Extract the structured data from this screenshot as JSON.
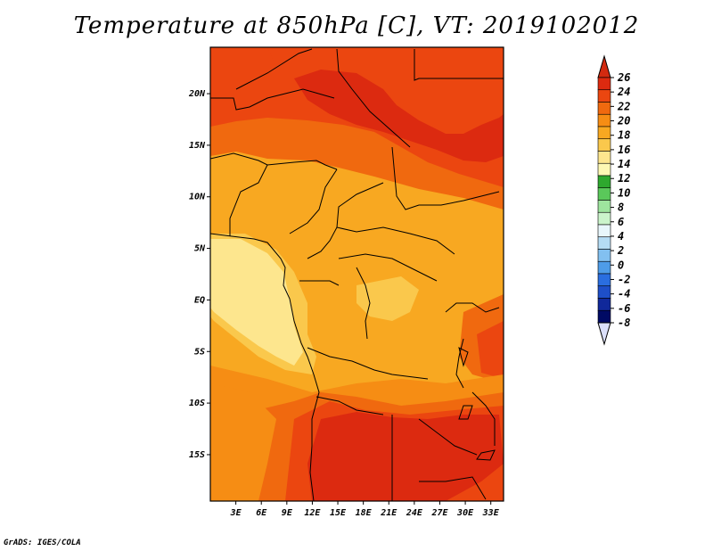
{
  "title": "Temperature at 850hPa [C], VT: 2019102012",
  "footer": "GrADS: IGES/COLA",
  "map": {
    "lon_range": [
      0,
      34.5
    ],
    "lat_range": [
      -19.5,
      24.5
    ],
    "lat_ticks": [
      {
        "value": 20,
        "label": "20N"
      },
      {
        "value": 15,
        "label": "15N"
      },
      {
        "value": 10,
        "label": "10N"
      },
      {
        "value": 5,
        "label": "5N"
      },
      {
        "value": 0,
        "label": "EQ"
      },
      {
        "value": -5,
        "label": "5S"
      },
      {
        "value": -10,
        "label": "10S"
      },
      {
        "value": -15,
        "label": "15S"
      }
    ],
    "lon_ticks": [
      {
        "value": 3,
        "label": "3E"
      },
      {
        "value": 6,
        "label": "6E"
      },
      {
        "value": 9,
        "label": "9E"
      },
      {
        "value": 12,
        "label": "12E"
      },
      {
        "value": 15,
        "label": "15E"
      },
      {
        "value": 18,
        "label": "18E"
      },
      {
        "value": 21,
        "label": "21E"
      },
      {
        "value": 24,
        "label": "24E"
      },
      {
        "value": 27,
        "label": "27E"
      },
      {
        "value": 30,
        "label": "30E"
      },
      {
        "value": 33,
        "label": "33E"
      }
    ]
  },
  "colorbar": {
    "levels": [
      "26",
      "24",
      "22",
      "20",
      "18",
      "16",
      "14",
      "12",
      "10",
      "8",
      "6",
      "4",
      "2",
      "0",
      "-2",
      "-4",
      "-6",
      "-8"
    ],
    "colors_top_to_bottom": [
      "#dc2a10",
      "#eb4610",
      "#f0690f",
      "#f68d14",
      "#f8a821",
      "#fac84c",
      "#fde68e",
      "#fdf8b4",
      "#2ea82e",
      "#5ac85a",
      "#9ee49e",
      "#cbf4cb",
      "#e8f6fb",
      "#b4dcf4",
      "#82c0f0",
      "#4e9ce8",
      "#2a6ee0",
      "#1e4fc8",
      "#10289a",
      "#000a64"
    ],
    "upper_arrow_color": "#d22a10",
    "lower_arrow_color": "#dce0fa"
  }
}
